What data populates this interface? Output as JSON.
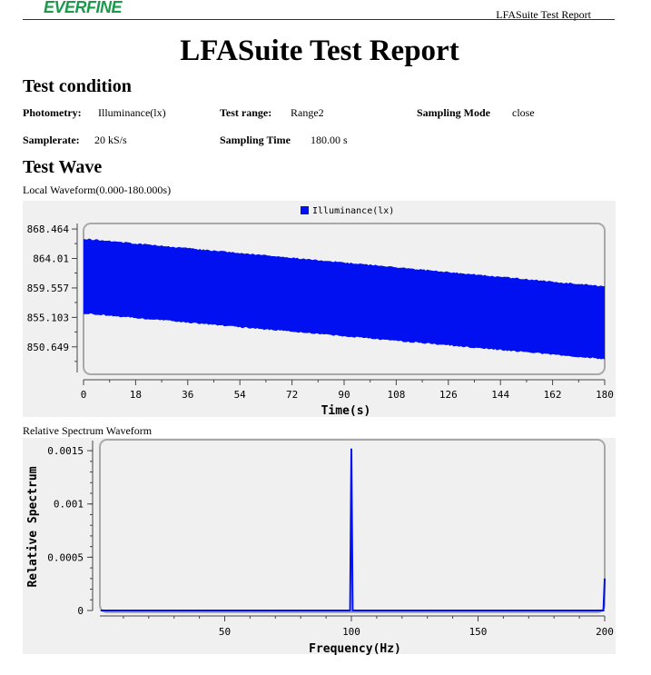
{
  "header": {
    "logo": "EVERFINE",
    "report_name": "LFASuite Test Report"
  },
  "title": "LFASuite Test Report",
  "test_condition": {
    "heading": "Test condition",
    "fields": [
      {
        "label": "Photometry:",
        "value": "Illuminance(lx)"
      },
      {
        "label": "Test range:",
        "value": "Range2"
      },
      {
        "label": "Sampling Mode",
        "value": "close"
      },
      {
        "label": "Samplerate:",
        "value": "20 kS/s"
      },
      {
        "label": "Sampling Time",
        "value": "180.00 s"
      }
    ]
  },
  "test_wave": {
    "heading": "Test Wave",
    "local_caption": "Local Waveform(0.000-180.000s)",
    "spectrum_caption": "Relative Spectrum Waveform"
  },
  "colors": {
    "series": "#0010f0",
    "panel": "#f0f0f0"
  },
  "chart_data": [
    {
      "type": "area",
      "legend": [
        "Illuminance(lx)"
      ],
      "legend_position": "top-center",
      "xlabel": "Time(s)",
      "ylabel": "",
      "xlim": [
        0,
        180
      ],
      "xticks": [
        "0",
        "18",
        "36",
        "54",
        "72",
        "90",
        "108",
        "126",
        "144",
        "162",
        "180"
      ],
      "yticks": [
        "868.464",
        "864.01",
        "859.557",
        "855.103",
        "850.649"
      ],
      "ylim": [
        846.5,
        869.3
      ],
      "series": [
        {
          "name": "Illuminance(lx)",
          "upper": [
            [
              0,
              867.1
            ],
            [
              180,
              859.9
            ]
          ],
          "lower": [
            [
              0,
              855.6
            ],
            [
              180,
              848.7
            ]
          ]
        }
      ],
      "grid": false
    },
    {
      "type": "line",
      "xlabel": "Frequency(Hz)",
      "ylabel": "Relative Spectrum",
      "xlim": [
        0,
        200
      ],
      "xticks": [
        "50",
        "100",
        "150",
        "200"
      ],
      "yticks": [
        "0.0015",
        "0.001",
        "0.0005",
        "0"
      ],
      "ylim": [
        0,
        0.00162
      ],
      "series": [
        {
          "points": [
            [
              1,
              0
            ],
            [
              99.5,
              0
            ],
            [
              100,
              0.00152
            ],
            [
              100.5,
              0
            ],
            [
              199.5,
              0
            ],
            [
              200,
              0.0003
            ]
          ]
        }
      ],
      "grid": false
    }
  ]
}
